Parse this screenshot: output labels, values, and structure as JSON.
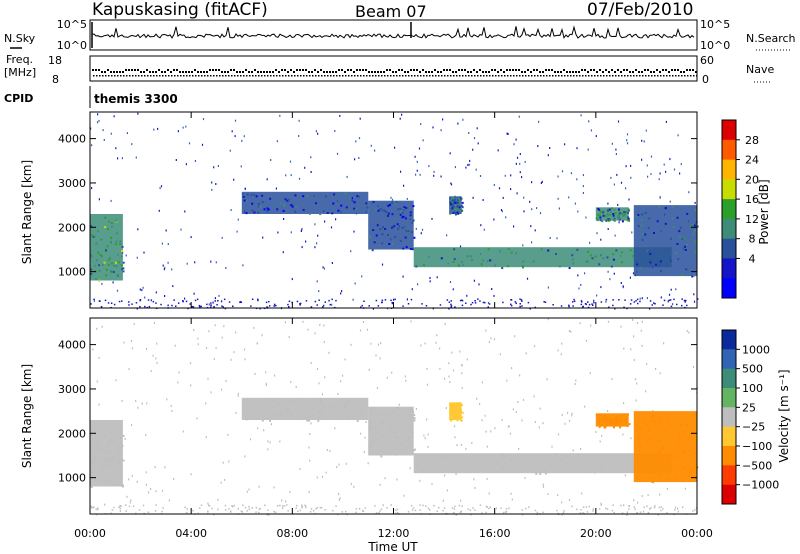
{
  "header": {
    "station": "Kapuskasing (fitACF)",
    "beam": "Beam 07",
    "date": "07/Feb/2010"
  },
  "panels": {
    "nsky": {
      "label": "N.Sky",
      "right_label": "N.Search",
      "left_ticks": [
        "10^5",
        "10^0"
      ],
      "right_ticks": [
        "10^5",
        "10^0"
      ]
    },
    "freq": {
      "label_line1": "Freq.",
      "label_line2": "[MHz]",
      "right_label": "Nave",
      "left_ticks": [
        "18",
        "8"
      ],
      "right_ticks": [
        "60",
        "0"
      ]
    },
    "cpid": {
      "label": "CPID",
      "value": "themis 3300"
    }
  },
  "colorbars": {
    "power": {
      "label": "Power [dB]",
      "ticks": [
        "28",
        "24",
        "20",
        "16",
        "12",
        "8",
        "4"
      ],
      "colors": [
        "#dc0000",
        "#ff5a00",
        "#ffb400",
        "#c8dc00",
        "#2aa02a",
        "#3c8c78",
        "#28509b",
        "#1414c8",
        "#0000ff"
      ]
    },
    "velocity": {
      "label": "Velocity [m s⁻¹]",
      "ticks": [
        "1000",
        "500",
        "100",
        "25",
        "−25",
        "−100",
        "−500",
        "−1000"
      ],
      "colors": [
        "#0a2a9b",
        "#3264b4",
        "#3c8c78",
        "#64b464",
        "#bebebe",
        "#ffc832",
        "#ff8c00",
        "#ff3c00",
        "#dc0000"
      ]
    }
  },
  "chart_data": [
    {
      "type": "heatmap",
      "variable": "power",
      "ylabel": "Slant Range [km]",
      "yticks": [
        "4000",
        "3000",
        "2000",
        "1000"
      ],
      "ylim": [
        180,
        4600
      ],
      "xlim": [
        0,
        24
      ],
      "bands": [
        {
          "t0": 0.0,
          "t1": 1.3,
          "r0": 800,
          "r1": 2300,
          "level": 12
        },
        {
          "t0": 6.0,
          "t1": 11.0,
          "r0": 2300,
          "r1": 2800,
          "level": 6
        },
        {
          "t0": 11.0,
          "t1": 12.8,
          "r0": 1500,
          "r1": 2600,
          "level": 6
        },
        {
          "t0": 12.8,
          "t1": 23.0,
          "r0": 1100,
          "r1": 1550,
          "level": 10
        },
        {
          "t0": 14.2,
          "t1": 14.7,
          "r0": 2300,
          "r1": 2700,
          "level": 8
        },
        {
          "t0": 20.0,
          "t1": 21.3,
          "r0": 2150,
          "r1": 2450,
          "level": 10
        },
        {
          "t0": 21.5,
          "t1": 24.0,
          "r0": 900,
          "r1": 2500,
          "level": 8
        }
      ]
    },
    {
      "type": "heatmap",
      "variable": "velocity",
      "ylabel": "Slant Range [km]",
      "xlabel": "Time UT",
      "yticks": [
        "4000",
        "3000",
        "2000",
        "1000"
      ],
      "xticks": [
        "00:00",
        "04:00",
        "08:00",
        "12:00",
        "16:00",
        "20:00",
        "00:00"
      ],
      "ylim": [
        180,
        4600
      ],
      "xlim": [
        0,
        24
      ],
      "bands": [
        {
          "t0": 0.0,
          "t1": 1.3,
          "r0": 800,
          "r1": 2300,
          "level": 0
        },
        {
          "t0": 6.0,
          "t1": 11.0,
          "r0": 2300,
          "r1": 2800,
          "level": 0
        },
        {
          "t0": 11.0,
          "t1": 12.8,
          "r0": 1500,
          "r1": 2600,
          "level": 0
        },
        {
          "t0": 12.8,
          "t1": 23.0,
          "r0": 1100,
          "r1": 1550,
          "level": 0
        },
        {
          "t0": 14.2,
          "t1": 14.7,
          "r0": 2300,
          "r1": 2700,
          "level": -100
        },
        {
          "t0": 20.0,
          "t1": 21.3,
          "r0": 2150,
          "r1": 2450,
          "level": -300
        },
        {
          "t0": 21.5,
          "t1": 24.0,
          "r0": 900,
          "r1": 2500,
          "level": -200
        }
      ]
    }
  ]
}
